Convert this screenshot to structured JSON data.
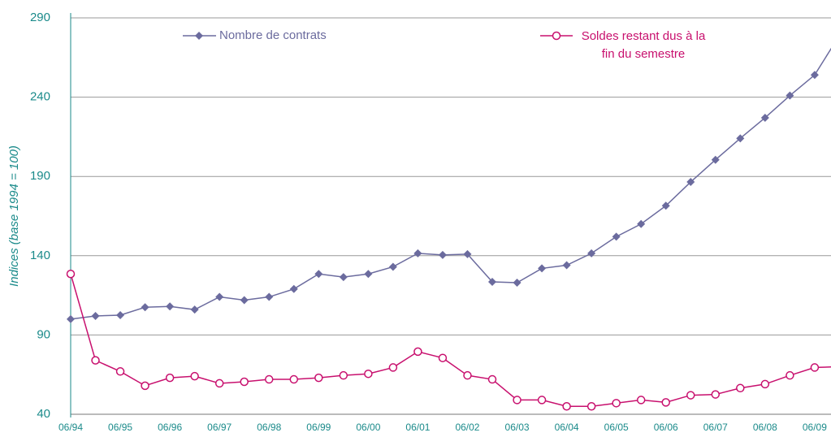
{
  "chart_data": {
    "type": "line",
    "ylabel": "Indices (base 1994 = 100)",
    "categories": [
      "06/94",
      null,
      "06/95",
      null,
      "06/96",
      null,
      "06/97",
      null,
      "06/98",
      null,
      "06/99",
      null,
      "06/00",
      null,
      "06/01",
      null,
      "06/02",
      null,
      "06/03",
      null,
      "06/04",
      null,
      "06/05",
      null,
      "06/06",
      null,
      "06/07",
      null,
      "06/08",
      null,
      "06/09",
      null
    ],
    "series": [
      {
        "name": "Nombre de contrats",
        "color": "#6b6b9e",
        "marker": "diamond",
        "values": [
          100,
          102,
          102.5,
          107.5,
          108,
          106,
          114,
          112,
          114,
          119,
          128.5,
          126.5,
          128.5,
          133,
          141.5,
          140.5,
          141,
          123.5,
          123,
          132,
          134,
          141.5,
          152,
          160,
          171.5,
          186.5,
          200.5,
          214,
          227,
          241,
          254,
          279
        ]
      },
      {
        "name": "Soldes restant dus à la fin du semestre",
        "color": "#c8106e",
        "marker": "circle",
        "values": [
          128.5,
          74,
          67,
          58,
          63,
          64,
          59.5,
          60.5,
          62,
          62,
          63,
          64.5,
          65.5,
          69.5,
          79.5,
          75.5,
          64.5,
          62,
          49,
          49,
          45,
          45,
          47,
          49,
          47.5,
          52,
          52.5,
          56.5,
          59,
          64.5,
          69.5,
          70
        ]
      }
    ],
    "ylim": [
      40,
      290
    ],
    "yticks": [
      40,
      90,
      140,
      190,
      240,
      290
    ],
    "grid": true
  }
}
